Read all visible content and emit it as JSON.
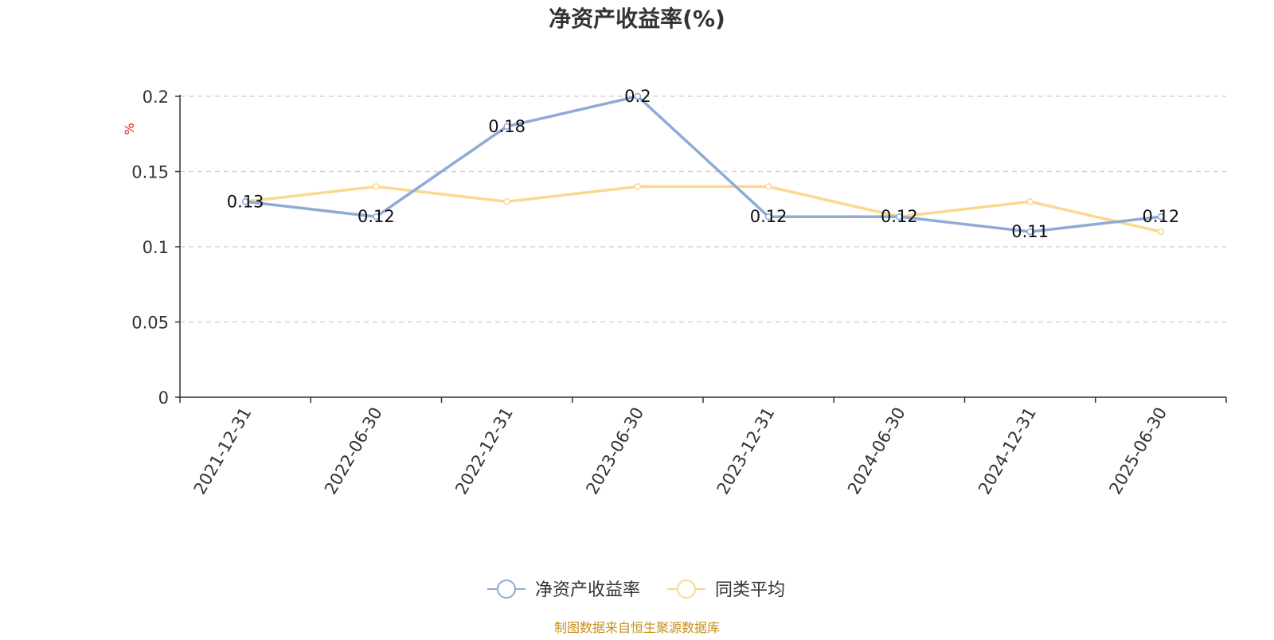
{
  "chart_data": {
    "type": "line",
    "title": "净资产收益率(%)",
    "ylabel": "%",
    "x": [
      "2021-12-31",
      "2022-06-30",
      "2022-12-31",
      "2023-06-30",
      "2023-12-31",
      "2024-06-30",
      "2024-12-31",
      "2025-06-30"
    ],
    "ylim": [
      0,
      0.2
    ],
    "yticks": [
      "0",
      "0.05",
      "0.1",
      "0.15",
      "0.2"
    ],
    "grid": true,
    "legend_position": "bottom",
    "series": [
      {
        "name": "净资产收益率",
        "values": [
          0.13,
          0.12,
          0.18,
          0.2,
          0.12,
          0.12,
          0.11,
          0.12
        ],
        "labels": [
          "0.13",
          "0.12",
          "0.18",
          "0.2",
          "0.12",
          "0.12",
          "0.11",
          "0.12"
        ],
        "color": "#8eaad6"
      },
      {
        "name": "同类平均",
        "values": [
          0.13,
          0.14,
          0.13,
          0.14,
          0.14,
          0.12,
          0.13,
          0.11
        ],
        "color": "#fad88f"
      }
    ],
    "source_note": "制图数据来自恒生聚源数据库"
  }
}
